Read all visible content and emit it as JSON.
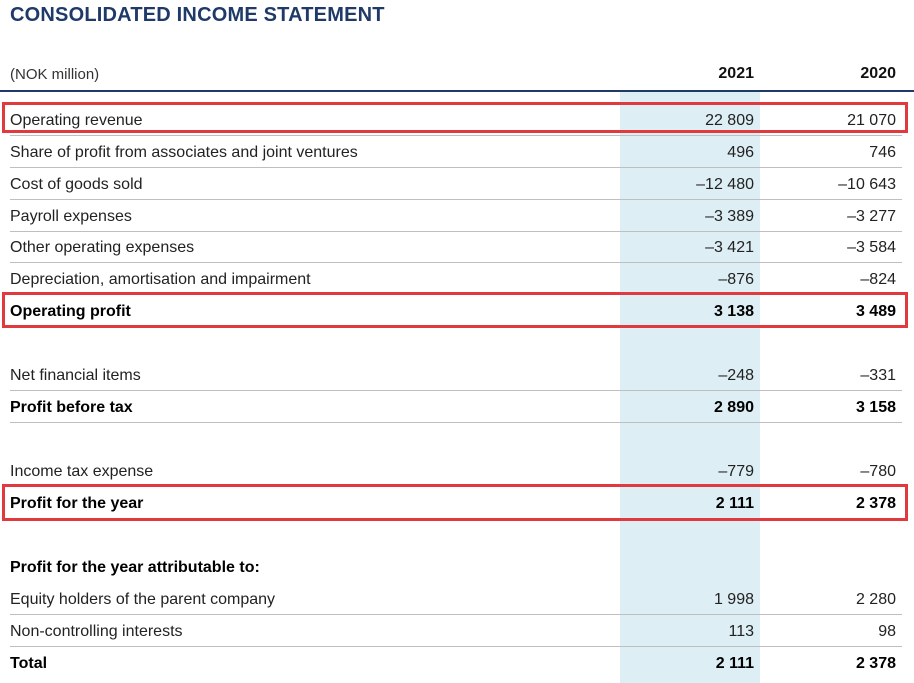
{
  "title": "CONSOLIDATED INCOME STATEMENT",
  "header": {
    "unit": "(NOK million)",
    "year_current": "2021",
    "year_prior": "2020"
  },
  "rows": [
    {
      "label": "Operating revenue",
      "v2021": "22 809",
      "v2020": "21 070"
    },
    {
      "label": "Share of profit from associates and joint ventures",
      "v2021": "496",
      "v2020": "746"
    },
    {
      "label": "Cost of goods sold",
      "v2021": "–12 480",
      "v2020": "–10 643"
    },
    {
      "label": "Payroll expenses",
      "v2021": "–3 389",
      "v2020": "–3 277"
    },
    {
      "label": "Other operating expenses",
      "v2021": "–3 421",
      "v2020": "–3 584"
    },
    {
      "label": "Depreciation, amortisation and impairment",
      "v2021": "–876",
      "v2020": "–824"
    },
    {
      "label": "Operating profit",
      "v2021": "3 138",
      "v2020": "3 489"
    },
    {
      "label": "Net financial items",
      "v2021": "–248",
      "v2020": "–331"
    },
    {
      "label": "Profit before tax",
      "v2021": "2 890",
      "v2020": "3 158"
    },
    {
      "label": "Income tax expense",
      "v2021": "–779",
      "v2020": "–780"
    },
    {
      "label": "Profit for the year",
      "v2021": "2 111",
      "v2020": "2 378"
    },
    {
      "label": "Profit for the year attributable to:",
      "v2021": "",
      "v2020": ""
    },
    {
      "label": "Equity holders of the parent company",
      "v2021": "1 998",
      "v2020": "2 280"
    },
    {
      "label": "Non-controlling interests",
      "v2021": "113",
      "v2020": "98"
    },
    {
      "label": "Total",
      "v2021": "2 111",
      "v2020": "2 378"
    }
  ],
  "colors": {
    "title": "#1f3a68",
    "highlight_box": "#e0393e",
    "column_shade": "#ddeef5"
  }
}
